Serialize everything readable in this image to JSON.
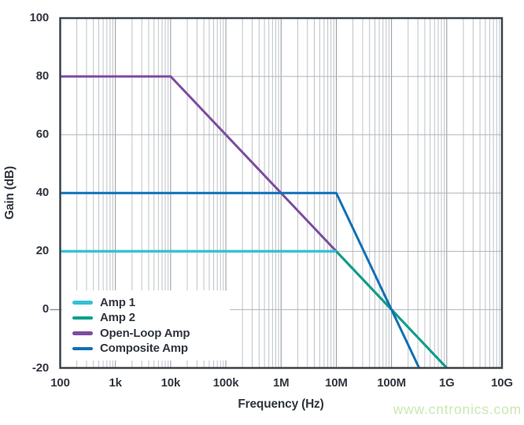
{
  "chart_data": {
    "type": "line",
    "title": "",
    "xlabel": "Frequency (Hz)",
    "ylabel": "Gain (dB)",
    "x_scale": "log",
    "xlim": [
      100,
      10000000000
    ],
    "ylim": [
      -20,
      100
    ],
    "grid": true,
    "legend_position": "lower-left",
    "x_ticks": [
      {
        "value": 100,
        "label": "100"
      },
      {
        "value": 1000,
        "label": "1k"
      },
      {
        "value": 10000,
        "label": "10k"
      },
      {
        "value": 100000,
        "label": "100k"
      },
      {
        "value": 1000000,
        "label": "1M"
      },
      {
        "value": 10000000,
        "label": "10M"
      },
      {
        "value": 100000000,
        "label": "100M"
      },
      {
        "value": 1000000000,
        "label": "1G"
      },
      {
        "value": 10000000000,
        "label": "10G"
      }
    ],
    "y_ticks": [
      {
        "value": 100,
        "label": "100"
      },
      {
        "value": 80,
        "label": "80"
      },
      {
        "value": 60,
        "label": "60"
      },
      {
        "value": 40,
        "label": "40"
      },
      {
        "value": 20,
        "label": "20"
      },
      {
        "value": 0,
        "label": "0"
      },
      {
        "value": -20,
        "label": "-20"
      }
    ],
    "series": [
      {
        "name": "Amp 1",
        "color": "#35bfd8",
        "points": [
          [
            100,
            20
          ],
          [
            10000000,
            20
          ]
        ]
      },
      {
        "name": "Amp 2",
        "color": "#0aa089",
        "points": [
          [
            100,
            20
          ],
          [
            10000000,
            20
          ],
          [
            1000000000,
            -20
          ]
        ]
      },
      {
        "name": "Open-Loop Amp",
        "color": "#7d4ba0",
        "points": [
          [
            100,
            80
          ],
          [
            10000,
            80
          ],
          [
            1000000000,
            -20
          ]
        ]
      },
      {
        "name": "Composite Amp",
        "color": "#1170b5",
        "points": [
          [
            100,
            40
          ],
          [
            10000000,
            40
          ],
          [
            316000000,
            -20
          ]
        ]
      }
    ],
    "draw_order": [
      "Open-Loop Amp",
      "Amp 2",
      "Amp 1",
      "Composite Amp"
    ]
  },
  "colors": {
    "axis_border": "#3c4249",
    "grid_horizontal": "#afb4b9",
    "grid_major_vertical": "#8f969d",
    "grid_minor_vertical": "#bfc3c7",
    "text": "#32363f",
    "background": "#ffffff"
  },
  "watermark": {
    "text": "www.cntronics.com",
    "color": "#cbe8b2"
  }
}
